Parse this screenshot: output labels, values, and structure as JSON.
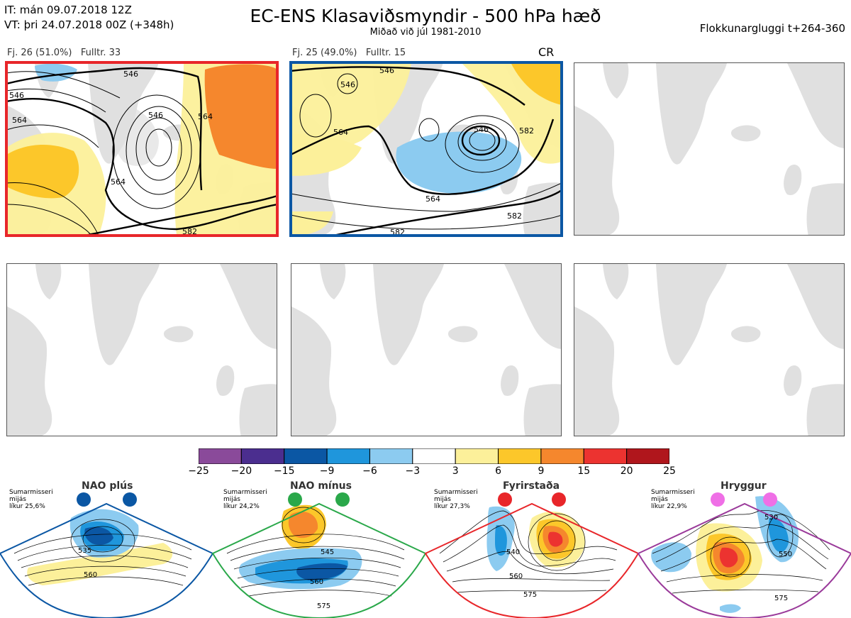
{
  "header": {
    "issue_time": "IT: mán 09.07.2018 12Z",
    "valid_time": "VT: þri 24.07.2018 00Z  (+348h)",
    "title": "EC-ENS Klasaviðsmyndir - 500 hPa hæð",
    "subtitle": "Miðað við júl 1981-2010",
    "window": "Flokkunargluggi t+264-360"
  },
  "clusters": [
    {
      "label": "Fj. 26 (51.0%)   Fulltr. 33",
      "frame_color": "#e8262a",
      "contours": [
        "546",
        "564",
        "546",
        "564",
        "582",
        "564",
        "546"
      ]
    },
    {
      "label": "Fj. 25 (49.0%)   Fulltr. 15",
      "frame_color": "#0b57a4",
      "tag": "CR",
      "contours": [
        "546",
        "546",
        "564",
        "546",
        "564",
        "582",
        "582",
        "582"
      ]
    }
  ],
  "empty_panels": 4,
  "colorbar": {
    "colors": [
      "#8a4a9a",
      "#4b2e8f",
      "#0b57a4",
      "#1f96dc",
      "#8ccbf0",
      "#ffffff",
      "#fcf09a",
      "#fcc72a",
      "#f5872d",
      "#ec3330",
      "#b0161c"
    ],
    "labels": [
      "−25",
      "−20",
      "−15",
      "−9",
      "−6",
      "−3",
      "3",
      "6",
      "9",
      "15",
      "20",
      "25"
    ]
  },
  "regimes": [
    {
      "name": "NAO plús",
      "note": [
        "Sumarmisseri",
        "mijás",
        "líkur 25,6%"
      ],
      "color": "#0b57a4",
      "contours": [
        "535",
        "560"
      ]
    },
    {
      "name": "NAO mínus",
      "note": [
        "Sumarmisseri",
        "mijás",
        "líkur 24,2%"
      ],
      "color": "#2aa84a",
      "contours": [
        "545",
        "560",
        "575"
      ]
    },
    {
      "name": "Fyrirstaða",
      "note": [
        "Sumarmisseri",
        "mijás",
        "líkur 27,3%"
      ],
      "color": "#e8262a",
      "contours": [
        "540",
        "560",
        "575"
      ]
    },
    {
      "name": "Hryggur",
      "note": [
        "Sumarmisseri",
        "mijás",
        "líkur 22,9%"
      ],
      "color": "#9a3a9a",
      "contours": [
        "530",
        "550",
        "575"
      ]
    }
  ]
}
